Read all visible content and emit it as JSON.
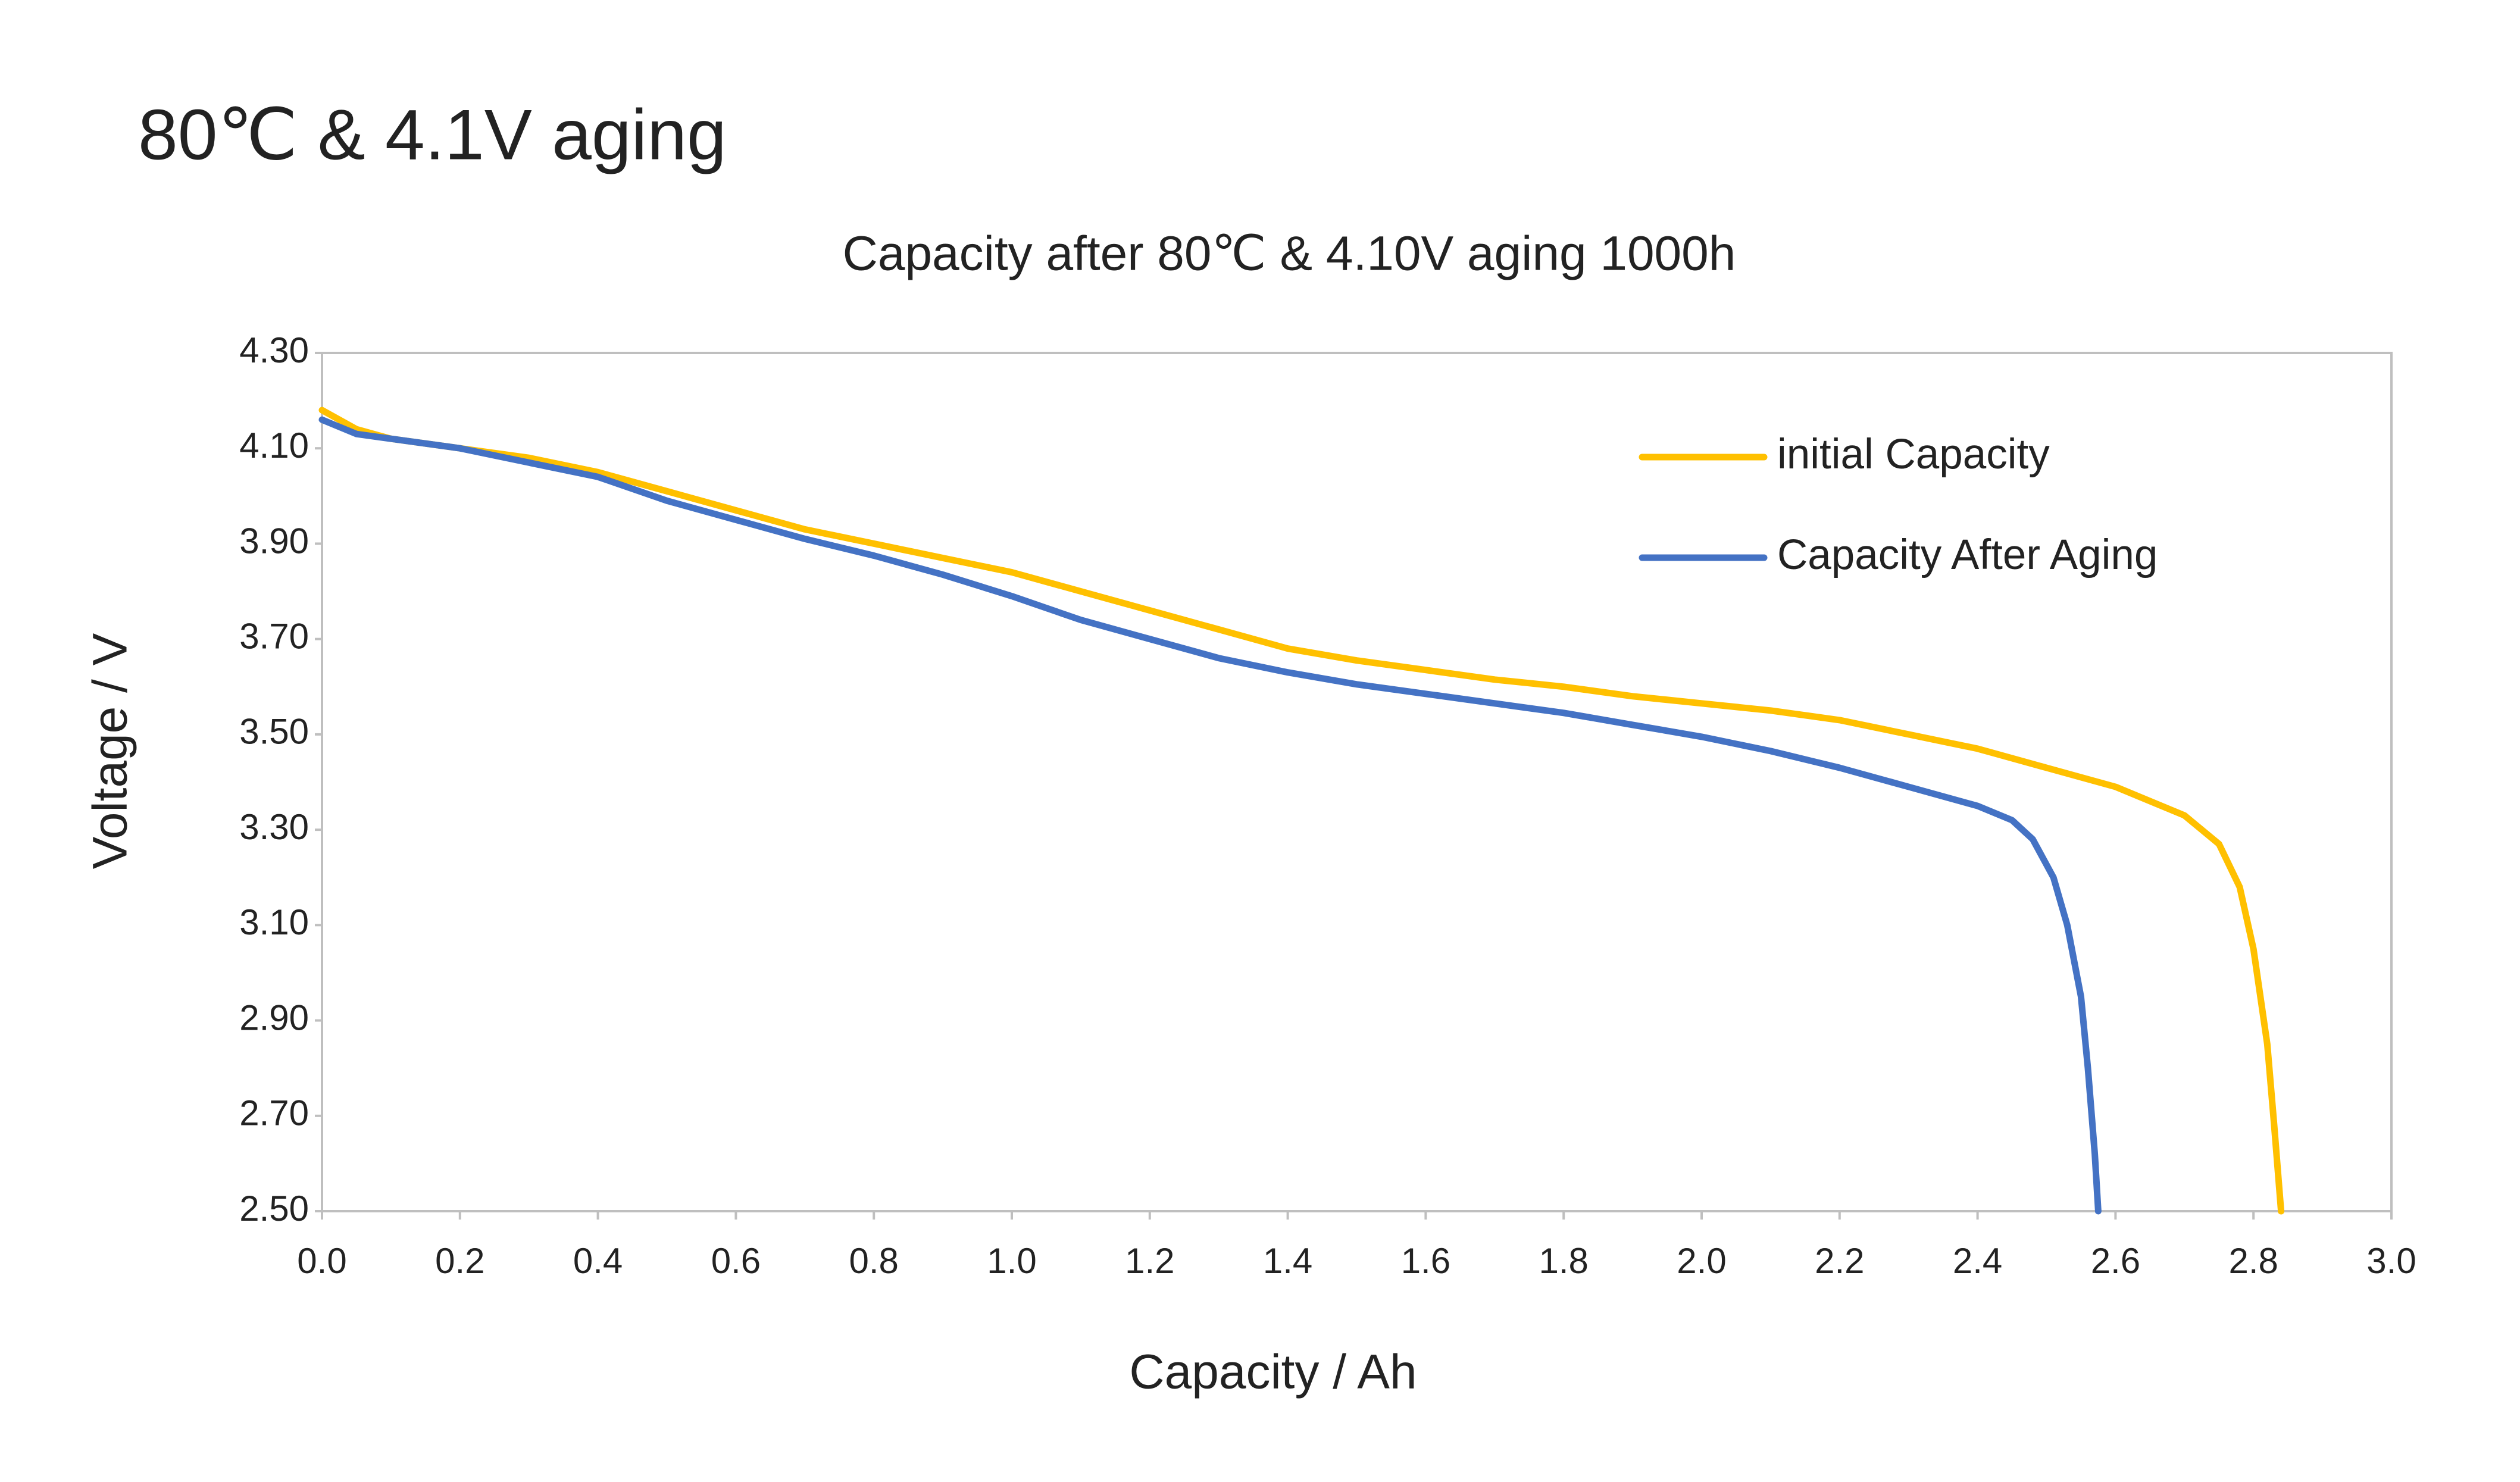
{
  "chart_data": {
    "type": "line",
    "title": "80℃ & 4.1V aging",
    "subtitle": "Capacity after 80℃ & 4.10V aging  1000h",
    "x_label": "Capacity / Ah",
    "y_label": "Voltage / V",
    "xlim": [
      0,
      3
    ],
    "ylim": [
      2.5,
      4.3
    ],
    "xticks": [
      {
        "value": 0,
        "label": "0.0"
      },
      0.2,
      0.4,
      0.6,
      0.8,
      {
        "value": 1,
        "label": "1.0"
      },
      1.2,
      1.4,
      1.6,
      1.8,
      {
        "value": 2,
        "label": "2.0"
      },
      2.2,
      2.4,
      2.6,
      2.8,
      {
        "value": 3,
        "label": "3.0"
      }
    ],
    "yticks": [
      {
        "value": 2.5,
        "label": "2.50"
      },
      {
        "value": 2.7,
        "label": "2.70"
      },
      {
        "value": 2.9,
        "label": "2.90"
      },
      {
        "value": 3.1,
        "label": "3.10"
      },
      {
        "value": 3.3,
        "label": "3.30"
      },
      {
        "value": 3.5,
        "label": "3.50"
      },
      {
        "value": 3.7,
        "label": "3.70"
      },
      {
        "value": 3.9,
        "label": "3.90"
      },
      {
        "value": 4.1,
        "label": "4.10"
      },
      {
        "value": 4.3,
        "label": "4.30"
      }
    ],
    "grid": false,
    "legend": "upper right",
    "series": [
      {
        "name": "initial Capacity",
        "color": "#FFC000",
        "x": [
          0,
          0.05,
          0.1,
          0.2,
          0.3,
          0.4,
          0.5,
          0.6,
          0.7,
          0.8,
          0.9,
          1.0,
          1.1,
          1.2,
          1.3,
          1.4,
          1.5,
          1.6,
          1.7,
          1.8,
          1.9,
          2.0,
          2.1,
          2.2,
          2.3,
          2.4,
          2.5,
          2.6,
          2.7,
          2.75,
          2.78,
          2.8,
          2.82,
          2.83,
          2.84
        ],
        "values": [
          4.18,
          4.14,
          4.12,
          4.1,
          4.08,
          4.05,
          4.01,
          3.97,
          3.93,
          3.9,
          3.87,
          3.84,
          3.8,
          3.76,
          3.72,
          3.68,
          3.655,
          3.635,
          3.615,
          3.6,
          3.58,
          3.565,
          3.55,
          3.53,
          3.5,
          3.47,
          3.43,
          3.39,
          3.33,
          3.27,
          3.18,
          3.05,
          2.85,
          2.68,
          2.5
        ]
      },
      {
        "name": "Capacity After Aging",
        "color": "#4472C4",
        "x": [
          0,
          0.05,
          0.1,
          0.2,
          0.3,
          0.4,
          0.5,
          0.6,
          0.7,
          0.8,
          0.9,
          1.0,
          1.1,
          1.2,
          1.3,
          1.4,
          1.5,
          1.6,
          1.7,
          1.8,
          1.9,
          2.0,
          2.1,
          2.2,
          2.3,
          2.4,
          2.45,
          2.48,
          2.51,
          2.53,
          2.55,
          2.56,
          2.57,
          2.575
        ],
        "values": [
          4.16,
          4.13,
          4.12,
          4.1,
          4.07,
          4.04,
          3.99,
          3.95,
          3.91,
          3.875,
          3.835,
          3.79,
          3.74,
          3.7,
          3.66,
          3.63,
          3.605,
          3.585,
          3.565,
          3.545,
          3.52,
          3.495,
          3.465,
          3.43,
          3.39,
          3.35,
          3.32,
          3.28,
          3.2,
          3.1,
          2.95,
          2.8,
          2.62,
          2.5
        ]
      }
    ]
  }
}
